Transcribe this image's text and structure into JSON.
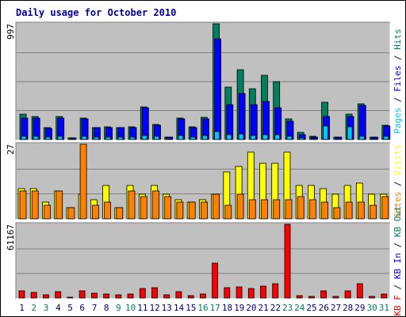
{
  "chart_data": {
    "type": "bar",
    "title": "Daily usage for October 2010",
    "colors": {
      "hits": "#00805c",
      "files": "#0000ff",
      "pages": "#00c8ff",
      "visits": "#ffff00",
      "sites": "#ff8000",
      "kbin": "#0000ff",
      "kbout": "#00805c",
      "kbf": "#ff0000",
      "weekend_label": "#00805c",
      "weekday_label": "#000080"
    },
    "days": [
      "1",
      "2",
      "3",
      "4",
      "5",
      "6",
      "7",
      "8",
      "9",
      "10",
      "11",
      "12",
      "13",
      "14",
      "15",
      "16",
      "17",
      "18",
      "19",
      "20",
      "21",
      "22",
      "23",
      "24",
      "25",
      "26",
      "27",
      "28",
      "29",
      "30",
      "31"
    ],
    "weekend_days": [
      2,
      3,
      9,
      10,
      16,
      17,
      23,
      24,
      30,
      31
    ],
    "panels": [
      {
        "name": "hits-files-pages",
        "scale_label": "997",
        "ylim": [
          0,
          997
        ],
        "side_label": [
          {
            "text": "Pages",
            "color": "#00c8ff"
          },
          {
            "text": " / ",
            "color": "#000080"
          },
          {
            "text": "Files",
            "color": "#0000ff"
          },
          {
            "text": " / ",
            "color": "#000080"
          },
          {
            "text": "Hits",
            "color": "#00805c"
          }
        ],
        "series": [
          {
            "name": "Hits",
            "color": "#00805c",
            "values": [
              220,
              195,
              105,
              200,
              15,
              185,
              105,
              110,
              105,
              110,
              280,
              130,
              20,
              185,
              110,
              190,
              997,
              450,
              600,
              440,
              550,
              500,
              180,
              60,
              25,
              320,
              20,
              220,
              310,
              20,
              125
            ]
          },
          {
            "name": "Files",
            "color": "#0000ff",
            "values": [
              185,
              185,
              95,
              185,
              12,
              180,
              100,
              100,
              100,
              100,
              270,
              125,
              18,
              175,
              100,
              180,
              870,
              300,
              395,
              300,
              330,
              275,
              160,
              40,
              20,
              195,
              18,
              200,
              295,
              18,
              115
            ]
          },
          {
            "name": "Pages",
            "color": "#00c8ff",
            "values": [
              30,
              25,
              20,
              28,
              5,
              30,
              20,
              20,
              22,
              22,
              35,
              30,
              8,
              35,
              20,
              35,
              70,
              40,
              45,
              35,
              40,
              40,
              30,
              15,
              8,
              115,
              10,
              110,
              30,
              8,
              25
            ]
          }
        ]
      },
      {
        "name": "visits-sites",
        "scale_label": "27",
        "ylim": [
          0,
          27
        ],
        "side_label": [
          {
            "text": "Sites",
            "color": "#ff8000"
          },
          {
            "text": " / ",
            "color": "#000080"
          },
          {
            "text": "Visits",
            "color": "#ffff00"
          }
        ],
        "series": [
          {
            "name": "Visits",
            "color": "#ffff00",
            "values": [
              11,
              11,
              6,
              10,
              4,
              9,
              7,
              12,
              4,
              12,
              9,
              12,
              9,
              7,
              6,
              7,
              9,
              17,
              19,
              24,
              20,
              20,
              24,
              12,
              12,
              11,
              9,
              12,
              13,
              9,
              9
            ]
          },
          {
            "name": "Sites",
            "color": "#ff8000",
            "values": [
              10,
              10,
              5,
              10,
              4,
              27,
              5,
              6,
              4,
              10,
              8,
              10,
              8,
              6,
              6,
              6,
              9,
              5,
              9,
              7,
              7,
              7,
              7,
              8,
              7,
              6,
              4,
              6,
              6,
              5,
              8
            ]
          }
        ]
      },
      {
        "name": "kb",
        "scale_label": "61167",
        "ylim": [
          0,
          61167
        ],
        "side_label": [
          {
            "text": "KB F",
            "color": "#ff0000"
          },
          {
            "text": " / ",
            "color": "#000080"
          },
          {
            "text": "KB In",
            "color": "#0000ff"
          },
          {
            "text": " / ",
            "color": "#000080"
          },
          {
            "text": "KB Out",
            "color": "#00805c"
          }
        ],
        "series": [
          {
            "name": "KB F",
            "color": "#ff0000",
            "values": [
              5600,
              4900,
              2800,
              5200,
              700,
              5900,
              3900,
              3300,
              2800,
              3300,
              8000,
              8400,
              2800,
              5300,
              2300,
              3300,
              29000,
              8800,
              9300,
              8000,
              10000,
              11700,
              61167,
              2300,
              1400,
              5700,
              1200,
              5800,
              12000,
              1400,
              3100
            ]
          }
        ]
      }
    ]
  }
}
